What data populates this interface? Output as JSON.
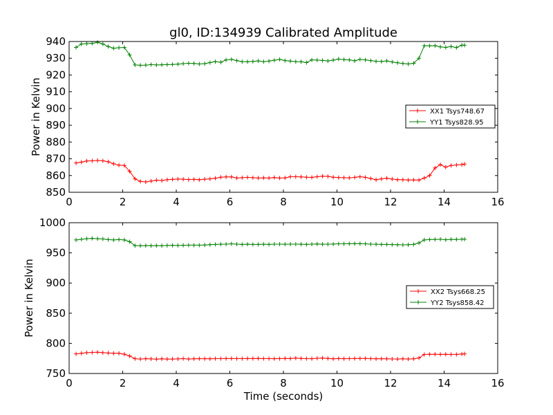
{
  "figure": {
    "title": "gl0, ID:134939 Calibrated Amplitude"
  },
  "chart_data": [
    {
      "type": "line",
      "title": "gl0, ID:134939 Calibrated Amplitude",
      "xlabel": "",
      "ylabel": "Power in Kelvin",
      "xlim": [
        0,
        16
      ],
      "ylim": [
        850,
        940
      ],
      "xticks": [
        0,
        2,
        4,
        6,
        8,
        10,
        12,
        14,
        16
      ],
      "yticks": [
        850,
        860,
        870,
        880,
        890,
        900,
        910,
        920,
        930,
        940
      ],
      "grid": false,
      "legend_position": "right",
      "x": [
        0.26,
        0.46,
        0.66,
        0.86,
        1.06,
        1.26,
        1.46,
        1.66,
        1.86,
        2.06,
        2.26,
        2.46,
        2.66,
        2.86,
        3.06,
        3.26,
        3.46,
        3.66,
        3.86,
        4.06,
        4.26,
        4.46,
        4.66,
        4.86,
        5.06,
        5.26,
        5.46,
        5.66,
        5.86,
        6.06,
        6.26,
        6.46,
        6.66,
        6.86,
        7.06,
        7.26,
        7.46,
        7.66,
        7.86,
        8.06,
        8.26,
        8.46,
        8.66,
        8.86,
        9.06,
        9.26,
        9.46,
        9.66,
        9.86,
        10.06,
        10.26,
        10.46,
        10.66,
        10.86,
        11.06,
        11.26,
        11.46,
        11.66,
        11.86,
        12.06,
        12.26,
        12.46,
        12.66,
        12.86,
        13.06,
        13.26,
        13.46,
        13.66,
        13.86,
        14.06,
        14.26,
        14.46,
        14.66,
        14.76
      ],
      "series": [
        {
          "name": "XX1 Tsys748.67",
          "color": "#ff0000",
          "values": [
            867.5,
            868.0,
            868.7,
            868.8,
            869.0,
            868.8,
            868.2,
            867.0,
            866.2,
            866.0,
            862.5,
            858.0,
            856.5,
            856.2,
            856.7,
            857.2,
            857.0,
            857.5,
            857.7,
            857.9,
            857.8,
            857.6,
            857.7,
            857.5,
            857.8,
            858.0,
            858.4,
            859.0,
            859.2,
            859.2,
            858.5,
            858.7,
            858.9,
            858.7,
            858.5,
            858.6,
            858.5,
            858.8,
            858.5,
            858.6,
            859.3,
            859.3,
            859.2,
            859.0,
            858.9,
            859.3,
            859.6,
            859.5,
            859.0,
            858.8,
            858.7,
            858.6,
            858.9,
            859.3,
            858.9,
            858.2,
            857.5,
            858.0,
            858.4,
            857.9,
            857.5,
            857.5,
            857.3,
            857.4,
            857.3,
            858.5,
            860.0,
            864.5,
            866.5,
            865.0,
            866.0,
            866.3,
            866.5,
            866.8
          ]
        },
        {
          "name": "YY1 Tsys828.95",
          "color": "#008000",
          "values": [
            936.5,
            938.5,
            938.7,
            938.9,
            939.5,
            938.5,
            937.0,
            936.0,
            936.3,
            936.5,
            932.0,
            926.0,
            925.8,
            925.9,
            926.2,
            926.0,
            926.1,
            926.2,
            926.3,
            926.5,
            926.8,
            927.0,
            926.9,
            926.6,
            926.8,
            927.4,
            928.0,
            927.6,
            929.0,
            929.3,
            928.6,
            928.0,
            927.9,
            928.1,
            928.4,
            928.0,
            928.3,
            928.8,
            929.3,
            928.6,
            928.3,
            928.0,
            927.9,
            927.4,
            929.0,
            928.9,
            928.7,
            928.4,
            928.9,
            929.5,
            929.2,
            929.0,
            928.5,
            929.3,
            929.0,
            928.6,
            928.2,
            928.1,
            928.4,
            927.8,
            927.3,
            926.9,
            926.6,
            927.0,
            930.0,
            937.5,
            937.4,
            937.5,
            936.8,
            936.5,
            937.0,
            936.4,
            937.8,
            937.8
          ]
        }
      ]
    },
    {
      "type": "line",
      "title": "",
      "xlabel": "Time (seconds)",
      "ylabel": "Power in Kelvin",
      "xlim": [
        0,
        16
      ],
      "ylim": [
        750,
        1000
      ],
      "xticks": [
        0,
        2,
        4,
        6,
        8,
        10,
        12,
        14,
        16
      ],
      "yticks": [
        750,
        800,
        850,
        900,
        950,
        1000
      ],
      "grid": false,
      "legend_position": "right",
      "x": [
        0.26,
        0.46,
        0.66,
        0.86,
        1.06,
        1.26,
        1.46,
        1.66,
        1.86,
        2.06,
        2.26,
        2.46,
        2.66,
        2.86,
        3.06,
        3.26,
        3.46,
        3.66,
        3.86,
        4.06,
        4.26,
        4.46,
        4.66,
        4.86,
        5.06,
        5.26,
        5.46,
        5.66,
        5.86,
        6.06,
        6.26,
        6.46,
        6.66,
        6.86,
        7.06,
        7.26,
        7.46,
        7.66,
        7.86,
        8.06,
        8.26,
        8.46,
        8.66,
        8.86,
        9.06,
        9.26,
        9.46,
        9.66,
        9.86,
        10.06,
        10.26,
        10.46,
        10.66,
        10.86,
        11.06,
        11.26,
        11.46,
        11.66,
        11.86,
        12.06,
        12.26,
        12.46,
        12.66,
        12.86,
        13.06,
        13.26,
        13.46,
        13.66,
        13.86,
        14.06,
        14.26,
        14.46,
        14.66,
        14.76
      ],
      "series": [
        {
          "name": "XX2 Tsys668.25",
          "color": "#ff0000",
          "values": [
            782.5,
            783.5,
            784.5,
            785.0,
            785.2,
            784.5,
            784.0,
            783.5,
            783.5,
            782.0,
            779.0,
            774.5,
            774.0,
            774.5,
            774.2,
            773.8,
            774.3,
            773.9,
            774.0,
            774.2,
            774.6,
            774.0,
            774.3,
            774.5,
            774.5,
            774.4,
            774.6,
            774.6,
            774.8,
            774.8,
            774.7,
            774.7,
            774.8,
            774.8,
            774.9,
            774.7,
            774.6,
            774.5,
            774.6,
            774.9,
            774.8,
            775.5,
            775.0,
            774.6,
            774.5,
            775.2,
            775.6,
            775.0,
            774.3,
            774.8,
            774.5,
            774.6,
            774.8,
            774.9,
            775.0,
            774.7,
            774.3,
            774.5,
            774.4,
            774.1,
            774.0,
            774.3,
            774.0,
            774.3,
            775.8,
            781.5,
            781.8,
            782.0,
            781.7,
            781.8,
            781.6,
            781.6,
            782.3,
            782.6
          ]
        },
        {
          "name": "YY2 Tsys858.42",
          "color": "#008000",
          "values": [
            971.5,
            972.5,
            973.5,
            974.0,
            973.5,
            973.0,
            972.0,
            971.5,
            972.0,
            971.5,
            968.5,
            962.0,
            961.8,
            962.0,
            961.8,
            962.0,
            961.8,
            962.3,
            962.5,
            962.3,
            962.6,
            962.8,
            962.8,
            962.8,
            963.0,
            963.6,
            964.0,
            964.3,
            964.5,
            965.0,
            964.5,
            964.0,
            964.3,
            964.0,
            964.0,
            964.3,
            964.0,
            964.5,
            964.5,
            964.3,
            964.5,
            964.5,
            964.3,
            964.0,
            964.5,
            964.8,
            964.3,
            964.5,
            964.6,
            965.0,
            965.0,
            965.2,
            965.3,
            965.3,
            965.0,
            964.5,
            964.3,
            964.0,
            964.0,
            963.8,
            963.5,
            963.3,
            963.5,
            964.0,
            966.5,
            971.5,
            972.0,
            972.3,
            972.6,
            971.8,
            972.4,
            972.3,
            972.6,
            972.6
          ]
        }
      ]
    }
  ]
}
